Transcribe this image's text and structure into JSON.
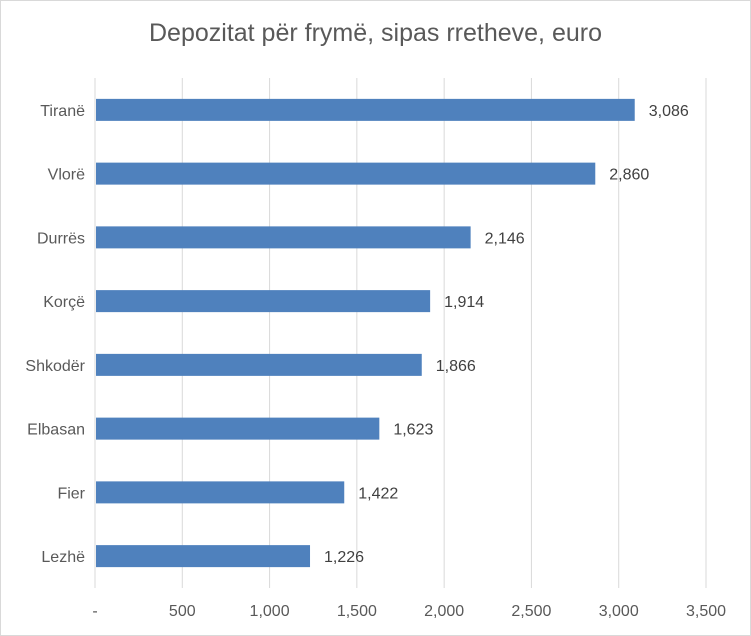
{
  "chart_data": {
    "type": "bar",
    "orientation": "horizontal",
    "title": "Depozitat për frymë, sipas rretheve, euro",
    "categories": [
      "Tiranë",
      "Vlorë",
      "Durrës",
      "Korçë",
      "Shkodër",
      "Elbasan",
      "Fier",
      "Lezhë"
    ],
    "values": [
      3086,
      2860,
      2146,
      1914,
      1866,
      1623,
      1422,
      1226
    ],
    "data_labels": [
      "3,086",
      "2,860",
      "2,146",
      "1,914",
      "1,866",
      "1,623",
      "1,422",
      "1,226"
    ],
    "x_ticks": [
      "-",
      "500",
      "1,000",
      "1,500",
      "2,000",
      "2,500",
      "3,000",
      "3,500"
    ],
    "x_tick_values": [
      0,
      500,
      1000,
      1500,
      2000,
      2500,
      3000,
      3500
    ],
    "xlim": [
      0,
      3500
    ],
    "xlabel": "",
    "ylabel": "",
    "grid": "vertical",
    "legend": "none",
    "bar_color": "#4f81bd",
    "grid_color": "#d9d9d9",
    "text_color": "#595959"
  }
}
